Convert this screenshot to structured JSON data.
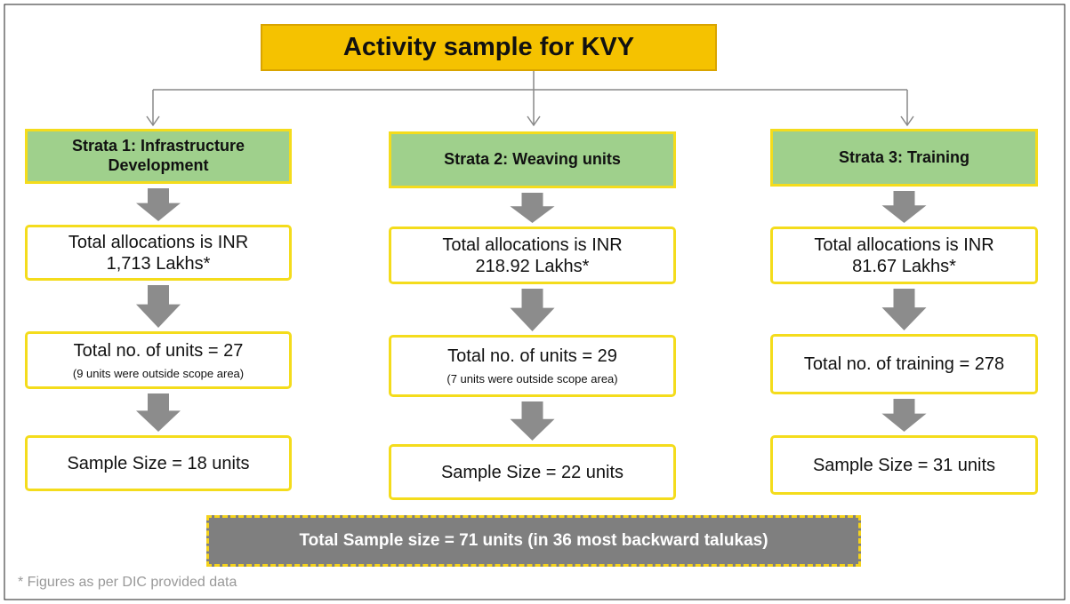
{
  "title": "Activity sample for KVY",
  "strata": [
    {
      "header": [
        "Strata 1: Infrastructure",
        "Development"
      ],
      "allocation": [
        "Total allocations is INR",
        "1,713 Lakhs*"
      ],
      "units": "Total no. of units = 27",
      "units_note": "(9 units were outside scope area)",
      "sample": "Sample Size = 18 units"
    },
    {
      "header": [
        "Strata 2: Weaving units"
      ],
      "allocation": [
        "Total allocations is INR",
        "218.92 Lakhs*"
      ],
      "units": "Total no. of units = 29",
      "units_note": "(7 units were outside scope area)",
      "sample": "Sample Size = 22 units"
    },
    {
      "header": [
        "Strata 3: Training"
      ],
      "allocation": [
        "Total allocations is INR",
        "81.67 Lakhs*"
      ],
      "units": "Total no. of training = 278",
      "sample": "Sample Size = 31 units"
    }
  ],
  "total": "Total Sample size = 71 units (in 36 most backward talukas)",
  "footnote": "* Figures as per DIC provided data"
}
